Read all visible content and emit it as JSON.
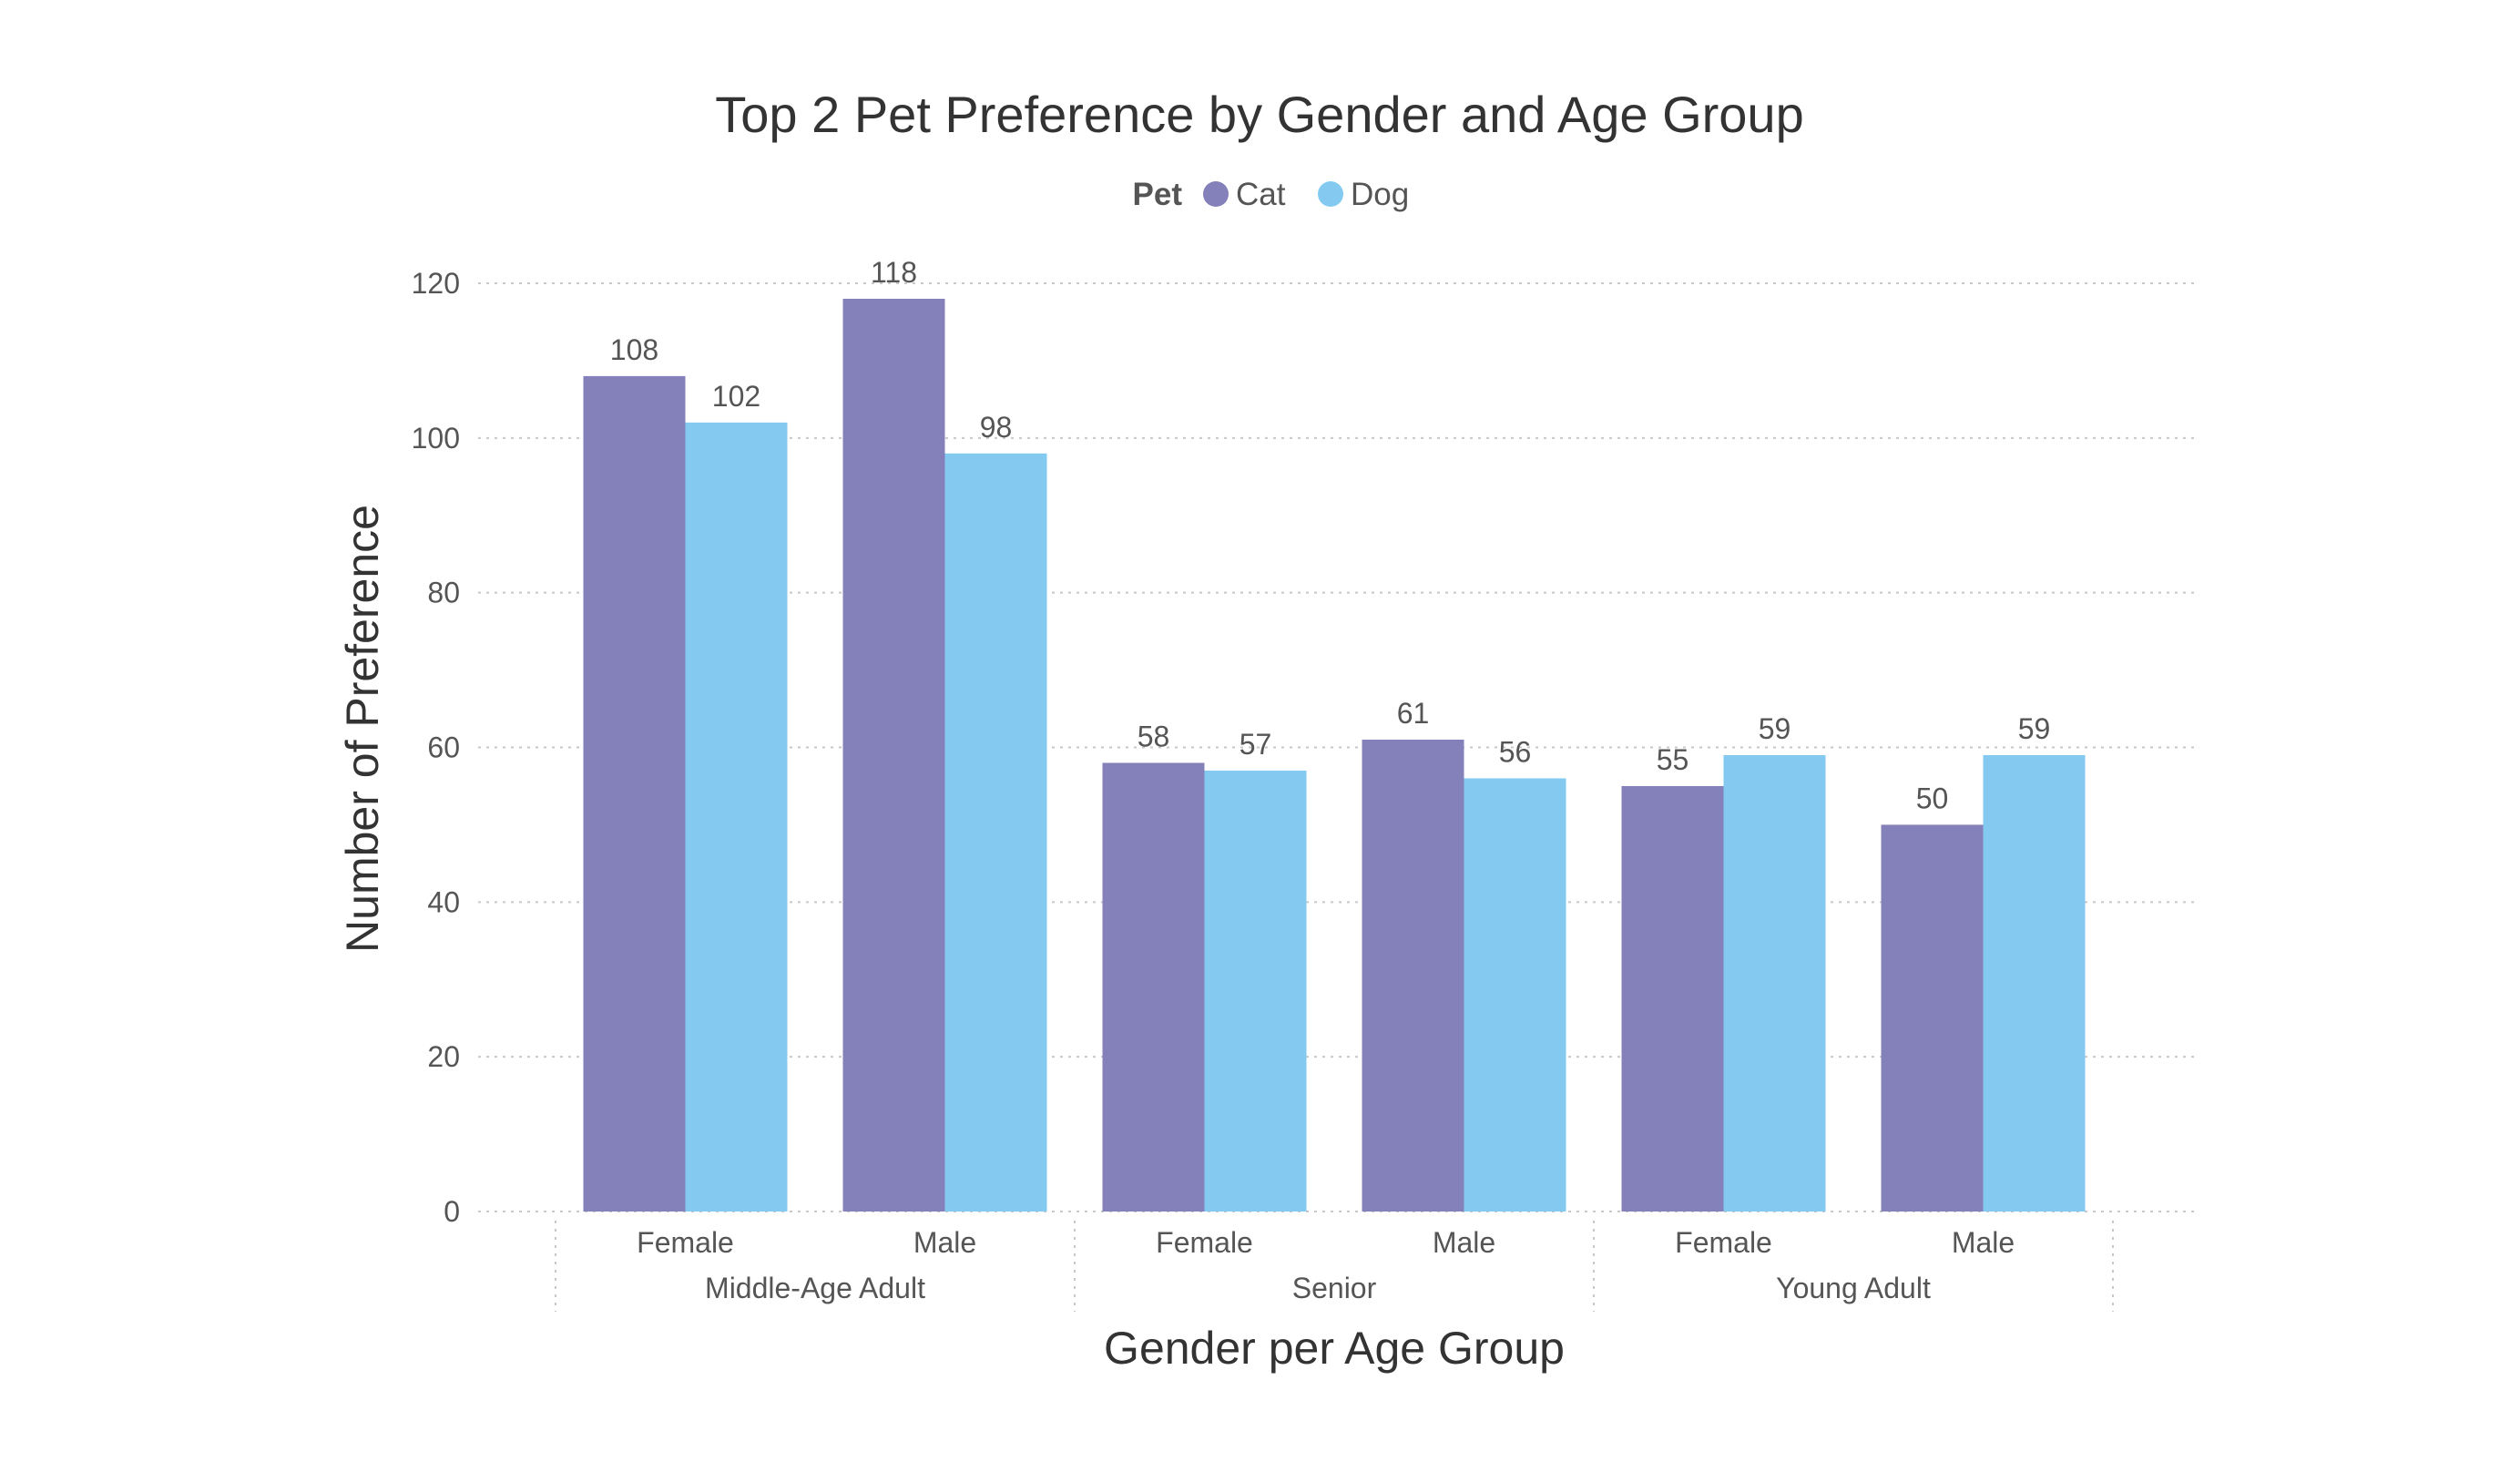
{
  "chart_data": {
    "type": "bar",
    "title": "Top 2 Pet Preference by Gender and Age Group",
    "legend": {
      "title": "Pet",
      "position": "top-center"
    },
    "xlabel": "Gender per Age Group",
    "ylabel": "Number of Preference",
    "ylim": [
      0,
      120
    ],
    "yticks": [
      0,
      20,
      40,
      60,
      80,
      100,
      120
    ],
    "grid": true,
    "groups": [
      {
        "label": "Middle-Age Adult",
        "categories": [
          "Female",
          "Male"
        ]
      },
      {
        "label": "Senior",
        "categories": [
          "Female",
          "Male"
        ]
      },
      {
        "label": "Young Adult",
        "categories": [
          "Female",
          "Male"
        ]
      }
    ],
    "categories": [
      "Female",
      "Male",
      "Female",
      "Male",
      "Female",
      "Male"
    ],
    "series": [
      {
        "name": "Cat",
        "color": "#8480BA",
        "values": [
          108,
          118,
          58,
          61,
          55,
          50
        ]
      },
      {
        "name": "Dog",
        "color": "#84CAF0",
        "values": [
          102,
          98,
          57,
          56,
          59,
          59
        ]
      }
    ]
  }
}
